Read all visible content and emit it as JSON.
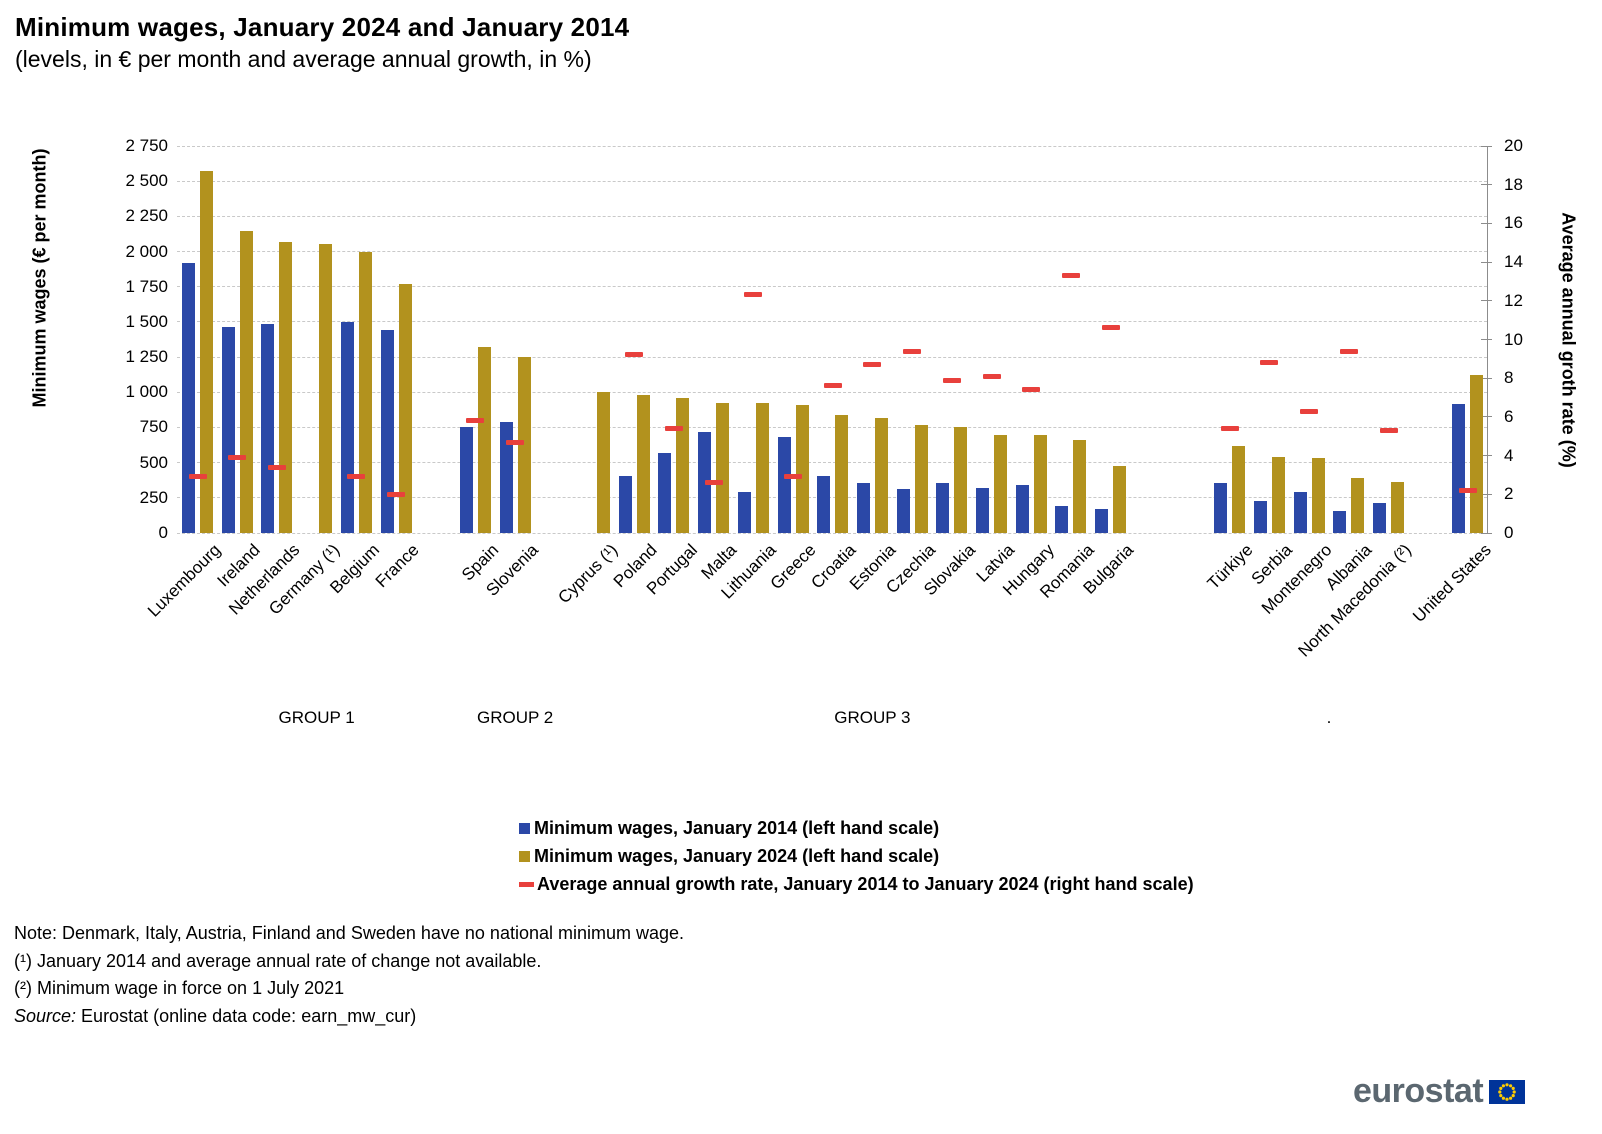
{
  "header": {
    "title": "Minimum wages, January 2024 and January 2014",
    "subtitle": "(levels, in € per month and average annual growth, in %)"
  },
  "chart_data": {
    "type": "bar",
    "title": "Minimum wages, January 2024 and January 2014",
    "left_axis": {
      "title": "Minimum wages (€ per month)",
      "max": 2750,
      "ticks": [
        0,
        250,
        500,
        750,
        1000,
        1250,
        1500,
        1750,
        2000,
        2250,
        2500,
        2750
      ],
      "tick_labels": [
        "0",
        "250",
        "500",
        "750",
        "1 000",
        "1 250",
        "1 500",
        "1 750",
        "2 000",
        "2 250",
        "2 500",
        "2 750"
      ]
    },
    "right_axis": {
      "title": "Average annual groth rate (%)",
      "max": 20,
      "ticks": [
        0,
        2,
        4,
        6,
        8,
        10,
        12,
        14,
        16,
        18,
        20
      ],
      "tick_labels": [
        "0",
        "2",
        "4",
        "6",
        "8",
        "10",
        "12",
        "14",
        "16",
        "18",
        "20"
      ]
    },
    "series": [
      {
        "name": "Minimum wages, January 2014 (left hand scale)",
        "type": "bar",
        "color": "#2B48A7"
      },
      {
        "name": "Minimum wages, January 2024 (left hand scale)",
        "type": "bar",
        "color": "#B2921E"
      },
      {
        "name": "Average annual growth rate, January 2014 to January 2024 (right hand scale)",
        "type": "dash",
        "color": "#E8403C"
      }
    ],
    "countries": [
      {
        "label": "Luxembourg",
        "slot": 0,
        "wage_2014": 1921,
        "wage_2024": 2571,
        "growth": 2.9
      },
      {
        "label": "Ireland",
        "slot": 1,
        "wage_2014": 1462,
        "wage_2024": 2146,
        "growth": 3.9
      },
      {
        "label": "Netherlands",
        "slot": 2,
        "wage_2014": 1486,
        "wage_2024": 2070,
        "growth": 3.4
      },
      {
        "label": "Germany (¹)",
        "slot": 3,
        "wage_2014": null,
        "wage_2024": 2054,
        "growth": null
      },
      {
        "label": "Belgium",
        "slot": 4,
        "wage_2014": 1502,
        "wage_2024": 1994,
        "growth": 2.9
      },
      {
        "label": "France",
        "slot": 5,
        "wage_2014": 1445,
        "wage_2024": 1767,
        "growth": 2.0
      },
      {
        "label": "Spain",
        "slot": 7,
        "wage_2014": 753,
        "wage_2024": 1323,
        "growth": 5.8
      },
      {
        "label": "Slovenia",
        "slot": 8,
        "wage_2014": 789,
        "wage_2024": 1254,
        "growth": 4.7
      },
      {
        "label": "Cyprus (¹)",
        "slot": 10,
        "wage_2014": null,
        "wage_2024": 1000,
        "growth": null
      },
      {
        "label": "Poland",
        "slot": 11,
        "wage_2014": 404,
        "wage_2024": 978,
        "growth": 9.2
      },
      {
        "label": "Portugal",
        "slot": 12,
        "wage_2014": 566,
        "wage_2024": 957,
        "growth": 5.4
      },
      {
        "label": "Malta",
        "slot": 13,
        "wage_2014": 718,
        "wage_2024": 925,
        "growth": 2.6
      },
      {
        "label": "Lithuania",
        "slot": 14,
        "wage_2014": 290,
        "wage_2024": 924,
        "growth": 12.3
      },
      {
        "label": "Greece",
        "slot": 15,
        "wage_2014": 684,
        "wage_2024": 910,
        "growth": 2.9
      },
      {
        "label": "Croatia",
        "slot": 16,
        "wage_2014": 406,
        "wage_2024": 840,
        "growth": 7.6
      },
      {
        "label": "Estonia",
        "slot": 17,
        "wage_2014": 355,
        "wage_2024": 820,
        "growth": 8.7
      },
      {
        "label": "Czechia",
        "slot": 18,
        "wage_2014": 310,
        "wage_2024": 764,
        "growth": 9.4
      },
      {
        "label": "Slovakia",
        "slot": 19,
        "wage_2014": 352,
        "wage_2024": 750,
        "growth": 7.9
      },
      {
        "label": "Latvia",
        "slot": 20,
        "wage_2014": 320,
        "wage_2024": 700,
        "growth": 8.1
      },
      {
        "label": "Hungary",
        "slot": 21,
        "wage_2014": 342,
        "wage_2024": 697,
        "growth": 7.4
      },
      {
        "label": "Romania",
        "slot": 22,
        "wage_2014": 190,
        "wage_2024": 663,
        "growth": 13.3
      },
      {
        "label": "Bulgaria",
        "slot": 23,
        "wage_2014": 174,
        "wage_2024": 477,
        "growth": 10.6
      },
      {
        "label": "Türkiye",
        "slot": 26,
        "wage_2014": 357,
        "wage_2024": 615,
        "growth": 5.4
      },
      {
        "label": "Serbia",
        "slot": 27,
        "wage_2014": 225,
        "wage_2024": 542,
        "growth": 8.8
      },
      {
        "label": "Montenegro",
        "slot": 28,
        "wage_2014": 288,
        "wage_2024": 533,
        "growth": 6.3
      },
      {
        "label": "Albania",
        "slot": 29,
        "wage_2014": 158,
        "wage_2024": 389,
        "growth": 9.4
      },
      {
        "label": "North Macedonia (²)",
        "slot": 30,
        "wage_2014": 214,
        "wage_2024": 360,
        "growth": 5.3
      },
      {
        "label": "United States",
        "slot": 32,
        "wage_2014": 916,
        "wage_2024": 1125,
        "growth": 2.2
      }
    ],
    "groups": [
      {
        "label": "GROUP 1",
        "from": 0,
        "to": 5
      },
      {
        "label": "GROUP 2",
        "from": 7,
        "to": 8
      },
      {
        "label": "GROUP 3",
        "from": 10,
        "to": 23
      },
      {
        "label": ".",
        "from": 26,
        "to": 30
      }
    ],
    "grid": "dashed",
    "legend_position": "bottom"
  },
  "legend": {
    "items": [
      "Minimum wages, January 2014 (left hand scale)",
      "Minimum wages, January 2024 (left hand scale)",
      "Average annual growth rate, January 2014 to January 2024 (right hand scale)"
    ]
  },
  "notes": {
    "note": "Note: Denmark, Italy, Austria, Finland and Sweden have no national minimum wage.",
    "footnote1": "(¹) January 2014 and average annual rate of change not available.",
    "footnote2": "(²) Minimum wage in force on 1 July 2021",
    "source_label": "Source:",
    "source_text": " Eurostat (online data code: earn_mw_cur)"
  },
  "logo": {
    "text": "eurostat"
  },
  "colors": {
    "bar_2014": "#2B48A7",
    "bar_2024": "#B2921E",
    "growth_dash": "#E8403C",
    "gridline": "#C9C9C9",
    "axis_line": "#8C8C8C",
    "logo_gray": "#5B6770",
    "flag_blue": "#003399",
    "flag_star": "#FFCC00"
  }
}
